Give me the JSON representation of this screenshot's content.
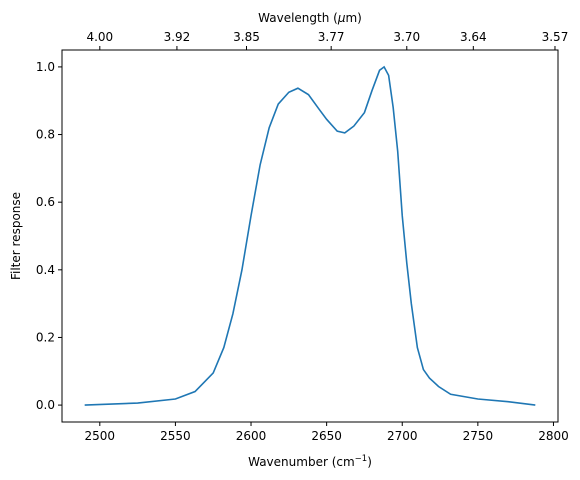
{
  "chart_data": {
    "type": "line",
    "title": "",
    "xlabel": "Wavenumber (cm",
    "xlabel_sup": "−1",
    "xlabel_suffix": ")",
    "ylabel": "Filter response",
    "top_xlabel": "Wavelength (",
    "top_xlabel_mu": "μ",
    "top_xlabel_suffix": "m)",
    "xlim": [
      2475,
      2803
    ],
    "ylim": [
      -0.05,
      1.05
    ],
    "x_ticks": [
      2500,
      2550,
      2600,
      2650,
      2700,
      2750,
      2800
    ],
    "x_tick_labels": [
      "2500",
      "2550",
      "2600",
      "2650",
      "2700",
      "2750",
      "2800"
    ],
    "y_ticks": [
      0.0,
      0.2,
      0.4,
      0.6,
      0.8,
      1.0
    ],
    "y_tick_labels": [
      "0.0",
      "0.2",
      "0.4",
      "0.6",
      "0.8",
      "1.0"
    ],
    "top_ticks_wavenumber": [
      2500,
      2551,
      2597,
      2653,
      2703,
      2747,
      2801
    ],
    "top_tick_labels": [
      "4.00",
      "3.92",
      "3.85",
      "3.77",
      "3.70",
      "3.64",
      "3.57"
    ],
    "grid": false,
    "line_color": "#1f77b4",
    "series": [
      {
        "x": [
          2490,
          2525,
          2550,
          2563,
          2575,
          2582,
          2588,
          2594,
          2600,
          2606,
          2612,
          2618,
          2625,
          2631,
          2638,
          2645,
          2650,
          2657,
          2662,
          2668,
          2675,
          2680,
          2685,
          2688,
          2691,
          2694,
          2697,
          2700,
          2703,
          2706,
          2710,
          2714,
          2718,
          2724,
          2732,
          2750,
          2770,
          2788
        ],
        "y": [
          0.0,
          0.006,
          0.018,
          0.04,
          0.095,
          0.17,
          0.27,
          0.4,
          0.56,
          0.71,
          0.82,
          0.89,
          0.925,
          0.937,
          0.918,
          0.875,
          0.845,
          0.81,
          0.805,
          0.825,
          0.865,
          0.93,
          0.99,
          1.0,
          0.975,
          0.88,
          0.75,
          0.56,
          0.42,
          0.3,
          0.17,
          0.105,
          0.08,
          0.055,
          0.032,
          0.018,
          0.01,
          0.0
        ]
      }
    ]
  }
}
